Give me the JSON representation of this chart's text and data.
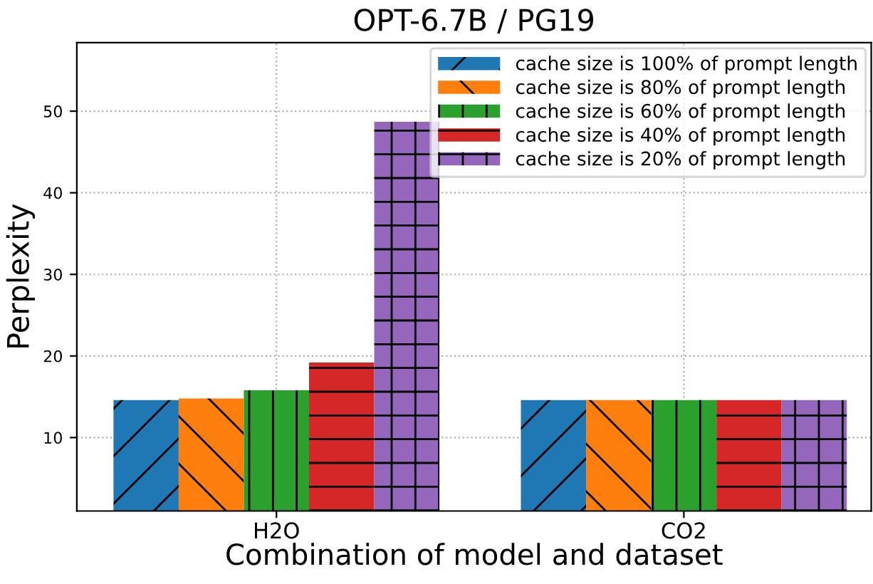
{
  "chart_data": {
    "type": "bar",
    "title": "OPT-6.7B / PG19",
    "xlabel": "Combination of model and dataset",
    "ylabel": "Perplexity",
    "categories": [
      "H2O",
      "CO2"
    ],
    "series": [
      {
        "name": "cache size is 100% of prompt length",
        "color": "#1f77b4",
        "values": [
          14.6,
          14.6
        ]
      },
      {
        "name": "cache size is 80% of prompt length",
        "color": "#ff7f0e",
        "values": [
          14.8,
          14.6
        ]
      },
      {
        "name": "cache size is 60% of prompt length",
        "color": "#2ca02c",
        "values": [
          15.8,
          14.6
        ]
      },
      {
        "name": "cache size is 40% of prompt length",
        "color": "#d62728",
        "values": [
          19.2,
          14.6
        ]
      },
      {
        "name": "cache size is 20% of prompt length",
        "color": "#9467bd",
        "values": [
          48.7,
          14.6
        ]
      }
    ],
    "ylim": [
      1,
      58.4
    ],
    "yticks": [
      10,
      20,
      30,
      40,
      50
    ],
    "grid": true,
    "legend": "top right"
  }
}
